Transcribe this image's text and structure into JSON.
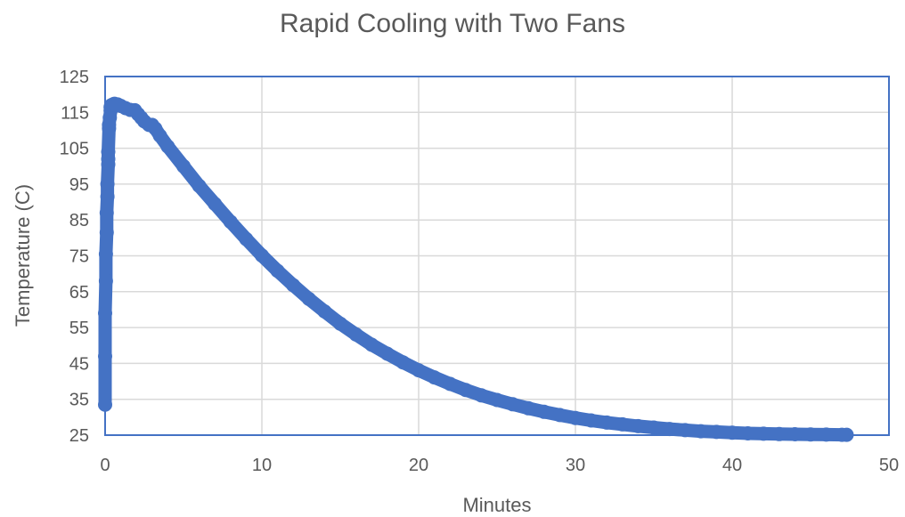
{
  "chart_data": {
    "type": "scatter",
    "title": "Rapid Cooling with Two Fans",
    "xlabel": "Minutes",
    "ylabel": "Temperature (C)",
    "xlim": [
      0,
      50
    ],
    "ylim": [
      25,
      125
    ],
    "x_ticks": [
      0,
      10,
      20,
      30,
      40,
      50
    ],
    "y_ticks": [
      25,
      35,
      45,
      55,
      65,
      75,
      85,
      95,
      105,
      115,
      125
    ],
    "grid": true,
    "legend": "none",
    "colors": {
      "series": "#4472C4",
      "grid": "#D9D9D9",
      "plot_border": "#4472C4",
      "text": "#595959"
    },
    "series": [
      {
        "x": [
          0,
          0,
          0,
          0.05,
          0.05,
          0.1,
          0.1,
          0.15,
          0.15,
          0.2,
          0.2,
          0.2,
          0.25,
          0.25,
          0.3,
          0.35,
          0.35,
          0.4,
          0.5,
          0.6,
          0.8,
          1.0,
          1.3,
          1.6,
          1.9,
          2.1,
          2.3,
          2.5,
          2.8,
          3.0,
          3.2,
          3.5,
          4,
          5,
          6,
          7,
          8,
          9,
          10,
          11,
          12,
          13,
          14,
          15,
          16,
          17,
          18,
          19,
          20,
          21,
          22,
          23,
          24,
          25,
          26,
          27,
          28,
          29,
          30,
          31,
          32,
          33,
          34,
          35,
          36,
          37,
          38,
          39,
          40,
          41,
          42,
          43,
          44,
          45,
          46,
          47,
          47.3
        ],
        "y": [
          33.5,
          47,
          59,
          68,
          75.5,
          81.5,
          87,
          91.5,
          95,
          100.5,
          102,
          104,
          110.5,
          111.5,
          113.5,
          115.5,
          116.5,
          117,
          117.2,
          117.4,
          117.2,
          116.8,
          116.2,
          115.7,
          115.6,
          114.5,
          113.5,
          112.5,
          111.5,
          111.5,
          110.5,
          108.5,
          105.5,
          100,
          94.5,
          89.5,
          84.5,
          79.7,
          75.1,
          70.8,
          66.8,
          63.0,
          59.5,
          56.1,
          53.1,
          50.2,
          47.7,
          45.3,
          43.1,
          41.1,
          39.3,
          37.6,
          36.1,
          34.8,
          33.6,
          32.5,
          31.5,
          30.6,
          29.8,
          29.1,
          28.5,
          28.0,
          27.5,
          27.1,
          26.7,
          26.4,
          26.1,
          25.9,
          25.7,
          25.5,
          25.4,
          25.3,
          25.25,
          25.2,
          25.15,
          25.1,
          25.1
        ]
      }
    ]
  }
}
